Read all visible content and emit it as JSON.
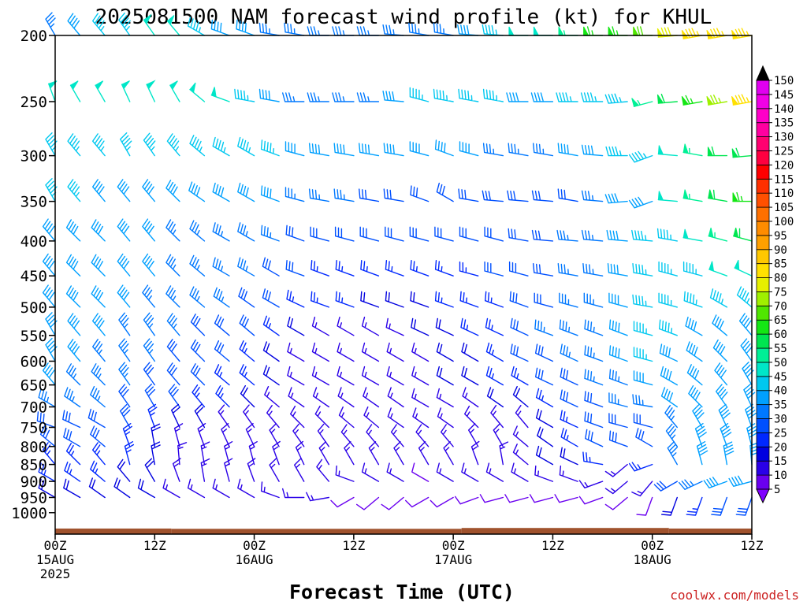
{
  "chart_data": {
    "type": "wind-barb-profile",
    "title": "2025081500 NAM forecast wind profile (kt) for KHUL",
    "xlabel": "Forecast Time (UTC)",
    "ylabel": "",
    "credit": "coolwx.com/models",
    "y_scale": "log",
    "y_inverted": true,
    "ylim": [
      1075,
      200
    ],
    "y_ticks": [
      200,
      250,
      300,
      350,
      400,
      450,
      500,
      550,
      600,
      650,
      700,
      750,
      800,
      850,
      900,
      950,
      1000
    ],
    "x_range_hours": [
      0,
      84
    ],
    "x_ticks": [
      {
        "hour": 0,
        "lines": [
          "00Z",
          "15AUG",
          "2025"
        ]
      },
      {
        "hour": 12,
        "lines": [
          "12Z"
        ]
      },
      {
        "hour": 24,
        "lines": [
          "00Z",
          "16AUG"
        ]
      },
      {
        "hour": 36,
        "lines": [
          "12Z"
        ]
      },
      {
        "hour": 48,
        "lines": [
          "00Z",
          "17AUG"
        ]
      },
      {
        "hour": 60,
        "lines": [
          "12Z"
        ]
      },
      {
        "hour": 72,
        "lines": [
          "00Z",
          "18AUG"
        ]
      },
      {
        "hour": 84,
        "lines": [
          "12Z"
        ]
      }
    ],
    "forecast_hours": [
      0,
      3,
      6,
      9,
      12,
      15,
      18,
      21,
      24,
      27,
      30,
      33,
      36,
      39,
      42,
      45,
      48,
      51,
      54,
      57,
      60,
      63,
      66,
      69,
      72,
      75,
      78,
      81,
      84
    ],
    "pressure_levels": [
      200,
      250,
      300,
      350,
      400,
      450,
      500,
      550,
      600,
      650,
      700,
      750,
      800,
      850,
      900,
      950
    ],
    "wind_dir_deg": [
      [
        330,
        320,
        320,
        325,
        325,
        320,
        300,
        290,
        290,
        280,
        280,
        270,
        270,
        270,
        275,
        280,
        280,
        275,
        275,
        270,
        270,
        270,
        270,
        270,
        270,
        265,
        260,
        260,
        260
      ],
      [
        340,
        330,
        330,
        335,
        335,
        330,
        310,
        290,
        280,
        280,
        270,
        270,
        270,
        270,
        275,
        285,
        280,
        280,
        280,
        270,
        270,
        270,
        270,
        265,
        255,
        265,
        260,
        260,
        260
      ],
      [
        330,
        320,
        320,
        330,
        325,
        320,
        310,
        300,
        300,
        290,
        285,
        280,
        280,
        280,
        280,
        285,
        290,
        285,
        280,
        280,
        280,
        280,
        275,
        270,
        250,
        275,
        280,
        270,
        265
      ],
      [
        330,
        320,
        320,
        320,
        320,
        315,
        305,
        300,
        300,
        290,
        285,
        280,
        280,
        280,
        280,
        290,
        300,
        280,
        275,
        275,
        275,
        280,
        275,
        265,
        250,
        275,
        280,
        280,
        270
      ],
      [
        320,
        315,
        315,
        320,
        320,
        315,
        310,
        300,
        300,
        290,
        290,
        285,
        285,
        285,
        285,
        285,
        285,
        285,
        285,
        280,
        275,
        275,
        275,
        275,
        275,
        280,
        280,
        285,
        285
      ],
      [
        320,
        315,
        315,
        320,
        320,
        315,
        310,
        300,
        300,
        300,
        290,
        290,
        290,
        290,
        290,
        290,
        290,
        285,
        285,
        285,
        280,
        280,
        280,
        280,
        280,
        285,
        285,
        290,
        295
      ],
      [
        320,
        315,
        315,
        320,
        320,
        315,
        310,
        305,
        305,
        300,
        295,
        290,
        290,
        290,
        290,
        290,
        290,
        290,
        290,
        290,
        285,
        285,
        285,
        285,
        280,
        285,
        290,
        300,
        310
      ],
      [
        330,
        320,
        320,
        325,
        325,
        320,
        315,
        310,
        310,
        305,
        300,
        300,
        300,
        300,
        295,
        295,
        295,
        295,
        295,
        295,
        290,
        290,
        290,
        290,
        285,
        290,
        300,
        310,
        320
      ],
      [
        330,
        320,
        320,
        325,
        325,
        320,
        315,
        310,
        310,
        305,
        300,
        300,
        300,
        300,
        300,
        300,
        300,
        300,
        300,
        295,
        295,
        295,
        290,
        290,
        285,
        295,
        305,
        315,
        325
      ],
      [
        320,
        315,
        315,
        325,
        325,
        320,
        315,
        310,
        310,
        305,
        300,
        300,
        300,
        300,
        300,
        300,
        300,
        300,
        300,
        300,
        295,
        295,
        290,
        290,
        285,
        300,
        310,
        320,
        330
      ],
      [
        300,
        305,
        310,
        325,
        330,
        325,
        320,
        315,
        315,
        310,
        305,
        305,
        305,
        305,
        305,
        300,
        300,
        305,
        305,
        310,
        300,
        295,
        290,
        285,
        280,
        305,
        315,
        325,
        335
      ],
      [
        290,
        295,
        300,
        330,
        340,
        335,
        330,
        325,
        325,
        320,
        315,
        315,
        310,
        310,
        305,
        305,
        305,
        315,
        320,
        320,
        300,
        295,
        290,
        285,
        285,
        320,
        330,
        335,
        340
      ],
      [
        310,
        300,
        310,
        340,
        350,
        345,
        340,
        335,
        335,
        330,
        325,
        325,
        320,
        320,
        320,
        320,
        320,
        330,
        330,
        310,
        305,
        300,
        295,
        290,
        300,
        325,
        340,
        340,
        345
      ],
      [
        320,
        315,
        320,
        345,
        350,
        355,
        350,
        345,
        345,
        340,
        335,
        330,
        330,
        330,
        330,
        330,
        330,
        340,
        350,
        310,
        300,
        295,
        280,
        230,
        250,
        330,
        345,
        350,
        355
      ],
      [
        300,
        305,
        310,
        320,
        330,
        340,
        350,
        345,
        340,
        330,
        330,
        320,
        290,
        300,
        300,
        300,
        300,
        300,
        300,
        300,
        290,
        290,
        250,
        230,
        220,
        240,
        245,
        250,
        255
      ],
      [
        300,
        300,
        305,
        305,
        300,
        300,
        300,
        300,
        300,
        290,
        270,
        260,
        240,
        230,
        230,
        240,
        240,
        250,
        255,
        255,
        255,
        255,
        250,
        230,
        200,
        200,
        200,
        200,
        200
      ]
    ],
    "wind_speed_kt": [
      [
        35,
        40,
        45,
        45,
        50,
        50,
        45,
        40,
        40,
        35,
        35,
        35,
        35,
        35,
        35,
        35,
        35,
        40,
        45,
        50,
        50,
        55,
        65,
        65,
        70,
        80,
        85,
        85,
        85
      ],
      [
        50,
        50,
        50,
        50,
        50,
        50,
        50,
        50,
        45,
        40,
        35,
        35,
        35,
        35,
        40,
        45,
        45,
        45,
        45,
        40,
        40,
        45,
        45,
        45,
        55,
        60,
        65,
        75,
        85
      ],
      [
        45,
        45,
        45,
        45,
        45,
        45,
        45,
        45,
        45,
        45,
        40,
        40,
        40,
        40,
        40,
        40,
        40,
        40,
        35,
        35,
        35,
        40,
        40,
        45,
        45,
        50,
        55,
        60,
        60
      ],
      [
        45,
        45,
        40,
        40,
        40,
        40,
        40,
        40,
        40,
        40,
        35,
        35,
        35,
        30,
        30,
        30,
        30,
        30,
        30,
        30,
        30,
        30,
        35,
        40,
        40,
        50,
        55,
        60,
        65
      ],
      [
        40,
        40,
        40,
        40,
        40,
        35,
        35,
        35,
        35,
        35,
        30,
        30,
        30,
        30,
        30,
        30,
        30,
        30,
        30,
        30,
        30,
        35,
        35,
        40,
        45,
        45,
        50,
        55,
        60
      ],
      [
        40,
        40,
        40,
        40,
        40,
        35,
        35,
        35,
        35,
        30,
        30,
        25,
        25,
        25,
        25,
        25,
        25,
        25,
        30,
        30,
        30,
        35,
        35,
        40,
        45,
        45,
        45,
        50,
        50
      ],
      [
        40,
        40,
        40,
        40,
        35,
        35,
        35,
        35,
        30,
        30,
        25,
        25,
        25,
        20,
        20,
        20,
        25,
        25,
        25,
        30,
        30,
        35,
        35,
        40,
        45,
        45,
        45,
        45,
        45
      ],
      [
        40,
        40,
        40,
        35,
        35,
        35,
        30,
        30,
        30,
        25,
        20,
        15,
        15,
        15,
        15,
        20,
        20,
        25,
        25,
        30,
        35,
        35,
        35,
        40,
        45,
        45,
        40,
        40,
        40
      ],
      [
        40,
        40,
        35,
        35,
        35,
        30,
        30,
        30,
        25,
        20,
        15,
        15,
        15,
        15,
        15,
        15,
        20,
        20,
        25,
        30,
        30,
        35,
        35,
        40,
        45,
        40,
        40,
        40,
        40
      ],
      [
        40,
        35,
        35,
        35,
        30,
        30,
        30,
        25,
        25,
        20,
        15,
        15,
        15,
        15,
        15,
        15,
        20,
        20,
        25,
        25,
        30,
        30,
        35,
        35,
        40,
        40,
        40,
        40,
        40
      ],
      [
        35,
        35,
        35,
        30,
        30,
        30,
        25,
        25,
        20,
        15,
        15,
        15,
        15,
        15,
        15,
        15,
        15,
        15,
        20,
        20,
        25,
        30,
        30,
        35,
        35,
        40,
        40,
        40,
        40
      ],
      [
        30,
        30,
        30,
        30,
        25,
        20,
        20,
        15,
        15,
        15,
        15,
        15,
        15,
        15,
        15,
        15,
        15,
        15,
        15,
        15,
        20,
        25,
        30,
        30,
        30,
        35,
        40,
        40,
        40
      ],
      [
        30,
        30,
        30,
        25,
        20,
        15,
        15,
        15,
        15,
        15,
        15,
        15,
        15,
        15,
        15,
        15,
        15,
        15,
        15,
        15,
        20,
        25,
        30,
        30,
        30,
        35,
        40,
        40,
        40
      ],
      [
        25,
        25,
        25,
        25,
        20,
        15,
        15,
        15,
        15,
        15,
        15,
        15,
        15,
        15,
        15,
        15,
        15,
        15,
        15,
        15,
        20,
        20,
        25,
        15,
        25,
        35,
        40,
        40,
        40
      ],
      [
        25,
        25,
        25,
        20,
        20,
        15,
        15,
        15,
        15,
        15,
        15,
        15,
        15,
        15,
        15,
        10,
        15,
        15,
        15,
        15,
        15,
        15,
        15,
        15,
        15,
        30,
        35,
        40,
        40
      ],
      [
        20,
        20,
        20,
        20,
        20,
        15,
        15,
        15,
        15,
        15,
        15,
        15,
        10,
        10,
        10,
        10,
        10,
        10,
        10,
        10,
        10,
        10,
        10,
        10,
        10,
        20,
        25,
        30,
        30
      ]
    ],
    "surface_pressure_hpa": [
      {
        "hours": [
          0,
          14
        ],
        "hpa": 1055
      },
      {
        "hours": [
          14,
          49
        ],
        "hpa": 1056
      },
      {
        "hours": [
          49,
          74
        ],
        "hpa": 1053
      },
      {
        "hours": [
          74,
          84
        ],
        "hpa": 1055
      }
    ],
    "terrain_color": "#a0522d",
    "colorbar": {
      "levels": [
        5,
        10,
        15,
        20,
        25,
        30,
        35,
        40,
        45,
        50,
        55,
        60,
        65,
        70,
        75,
        80,
        85,
        90,
        95,
        100,
        105,
        110,
        115,
        120,
        125,
        130,
        135,
        140,
        145,
        150
      ],
      "labels": [
        "5",
        "10",
        "15",
        "20",
        "25",
        "30",
        "35",
        "40",
        "45",
        "50",
        "55",
        "60",
        "65",
        "70",
        "75",
        "80",
        "85",
        "90",
        "95",
        "100",
        "105",
        "110",
        "115",
        "120",
        "125",
        "130",
        "135",
        "140",
        "145",
        "150"
      ],
      "colors": [
        "#8000ff",
        "#6a00f0",
        "#2a00e8",
        "#0000e0",
        "#0028ff",
        "#0050ff",
        "#0078ff",
        "#00a0ff",
        "#00c8f0",
        "#00e6c8",
        "#00f096",
        "#00e650",
        "#14e614",
        "#50e600",
        "#a0f000",
        "#e6f000",
        "#ffe000",
        "#ffc800",
        "#ffa000",
        "#ff8c00",
        "#ff7000",
        "#ff5000",
        "#ff3000",
        "#ff0000",
        "#ff0040",
        "#ff0070",
        "#ff00a0",
        "#ff00c8",
        "#f000e6",
        "#e000f0"
      ]
    }
  }
}
